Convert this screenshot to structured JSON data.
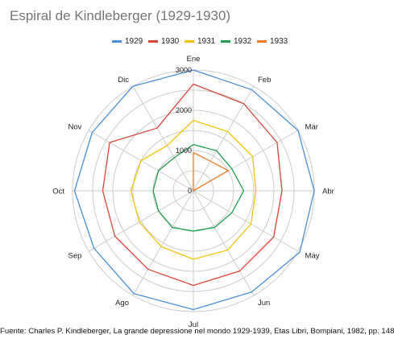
{
  "chart_data": {
    "type": "radar",
    "title": "Espiral de Kindleberger (1929-1930)",
    "categories": [
      "Ene",
      "Feb",
      "Mar",
      "Abr",
      "May",
      "Jun",
      "Jul",
      "Ago",
      "Sep",
      "Oct",
      "Nov",
      "Dic"
    ],
    "radial_ticks": [
      "0",
      "1000",
      "2000",
      "3000"
    ],
    "rlim": [
      0,
      3000
    ],
    "grid": true,
    "legend_position": "top",
    "series": [
      {
        "name": "1929",
        "color": "#4a90d9",
        "values": [
          3000,
          2900,
          3000,
          3000,
          3050,
          2900,
          2950,
          2950,
          2850,
          2950,
          2900,
          3000
        ]
      },
      {
        "name": "1930",
        "color": "#db4437",
        "values": [
          2650,
          2500,
          2400,
          2200,
          2300,
          2300,
          2350,
          2250,
          2250,
          2250,
          2400,
          1800
        ]
      },
      {
        "name": "1931",
        "color": "#f4c20d",
        "values": [
          1750,
          1700,
          1700,
          1550,
          1650,
          1700,
          1700,
          1600,
          1550,
          1550,
          1500,
          1300
        ]
      },
      {
        "name": "1932",
        "color": "#1e9e4a",
        "values": [
          1150,
          1150,
          1100,
          1250,
          1100,
          1050,
          1000,
          1050,
          1000,
          1000,
          1000,
          950
        ]
      },
      {
        "name": "1933",
        "color": "#f07b28",
        "values": [
          950,
          850,
          1000,
          0,
          0,
          0,
          0,
          0,
          0,
          0,
          0,
          0
        ]
      }
    ]
  },
  "source_note": "Fuente: Charles P. Kindleberger, La grande depressione nel mondo 1929-1939, Etas Libri, Bompiani, 1982, pp. 148"
}
